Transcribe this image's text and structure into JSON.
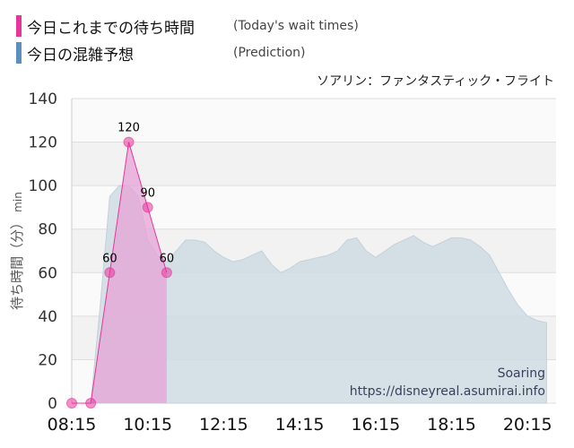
{
  "legend": {
    "today_label": "今日これまでの待ち時間",
    "today_en": "(Today's wait times)",
    "prediction_label": "今日の混雑予想",
    "prediction_en": "(Prediction)"
  },
  "attraction_name": "ソアリン：ファンタスティック・フライト",
  "watermark": {
    "line1": "Soaring",
    "line2": "https://disneyreal.asumirai.info"
  },
  "colors": {
    "today": "#e8359a",
    "today_fill": "#e6a3d6",
    "prediction": "#5b8fbf",
    "prediction_fill": "#cfdbe3",
    "band": "#f2f2f2"
  },
  "chart_data": {
    "type": "area",
    "ylabel": "待ち時間（分）",
    "yunit": "min",
    "ylim": [
      0,
      140
    ],
    "yticks": [
      0,
      20,
      40,
      60,
      80,
      100,
      120,
      140
    ],
    "xlim": [
      "08:15",
      "21:00"
    ],
    "xticks": [
      "08:15",
      "10:15",
      "12:15",
      "14:15",
      "16:15",
      "18:15",
      "20:15"
    ],
    "grid": true,
    "series": [
      {
        "name": "今日これまでの待ち時間",
        "type": "area",
        "x": [
          "08:15",
          "08:45",
          "09:15",
          "09:45",
          "10:15",
          "10:45"
        ],
        "y": [
          0,
          0,
          60,
          120,
          90,
          60
        ],
        "labels": [
          "",
          "",
          "60",
          "120",
          "90",
          "60"
        ]
      },
      {
        "name": "今日の混雑予想",
        "type": "area",
        "x": [
          "08:15",
          "08:45",
          "09:00",
          "09:15",
          "09:30",
          "09:45",
          "10:00",
          "10:15",
          "10:30",
          "10:45",
          "11:00",
          "11:15",
          "11:30",
          "11:45",
          "12:00",
          "12:15",
          "12:30",
          "12:45",
          "13:00",
          "13:15",
          "13:30",
          "13:45",
          "14:00",
          "14:15",
          "14:30",
          "14:45",
          "15:00",
          "15:15",
          "15:30",
          "15:45",
          "16:00",
          "16:15",
          "16:30",
          "16:45",
          "17:00",
          "17:15",
          "17:30",
          "17:45",
          "18:00",
          "18:15",
          "18:30",
          "18:45",
          "19:00",
          "19:15",
          "19:30",
          "19:45",
          "20:00",
          "20:15",
          "20:30",
          "20:45"
        ],
        "y": [
          0,
          0,
          45,
          95,
          100,
          100,
          95,
          75,
          68,
          65,
          70,
          75,
          75,
          74,
          70,
          67,
          65,
          66,
          68,
          70,
          64,
          60,
          62,
          65,
          66,
          67,
          68,
          70,
          75,
          76,
          70,
          67,
          70,
          73,
          75,
          77,
          74,
          72,
          74,
          76,
          76,
          75,
          72,
          68,
          60,
          52,
          45,
          40,
          38,
          37
        ]
      }
    ]
  }
}
